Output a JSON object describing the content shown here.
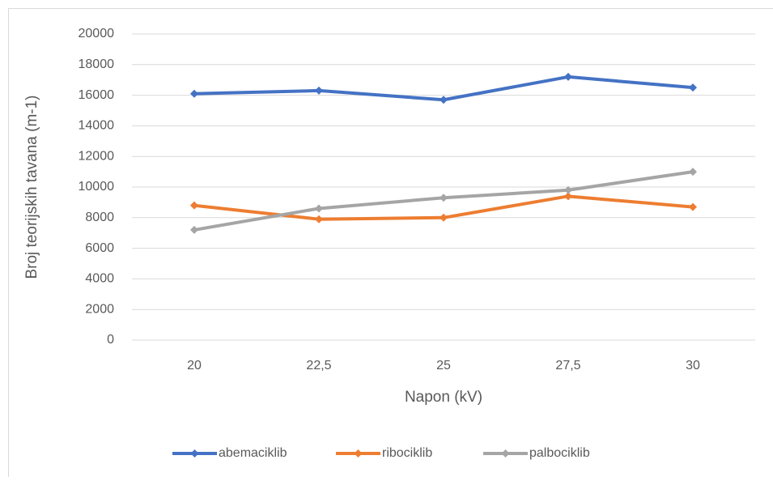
{
  "chart_data": {
    "type": "line",
    "xlabel": "Napon (kV)",
    "ylabel": "Broj teorijskih tavana (m-1)",
    "categories": [
      "20",
      "22,5",
      "25",
      "27,5",
      "30"
    ],
    "series": [
      {
        "name": "abemaciklib",
        "color": "#4472c4",
        "values": [
          16100,
          16300,
          15700,
          17200,
          16500
        ]
      },
      {
        "name": "ribociklib",
        "color": "#ed7d31",
        "values": [
          8800,
          7900,
          8000,
          9400,
          8700
        ]
      },
      {
        "name": "palbociklib",
        "color": "#a5a5a5",
        "values": [
          7200,
          8600,
          9300,
          9800,
          11000
        ]
      }
    ],
    "ylim": [
      0,
      20000
    ],
    "yticks": [
      0,
      2000,
      4000,
      6000,
      8000,
      10000,
      12000,
      14000,
      16000,
      18000,
      20000
    ],
    "grid": true,
    "legend": "bottom"
  }
}
